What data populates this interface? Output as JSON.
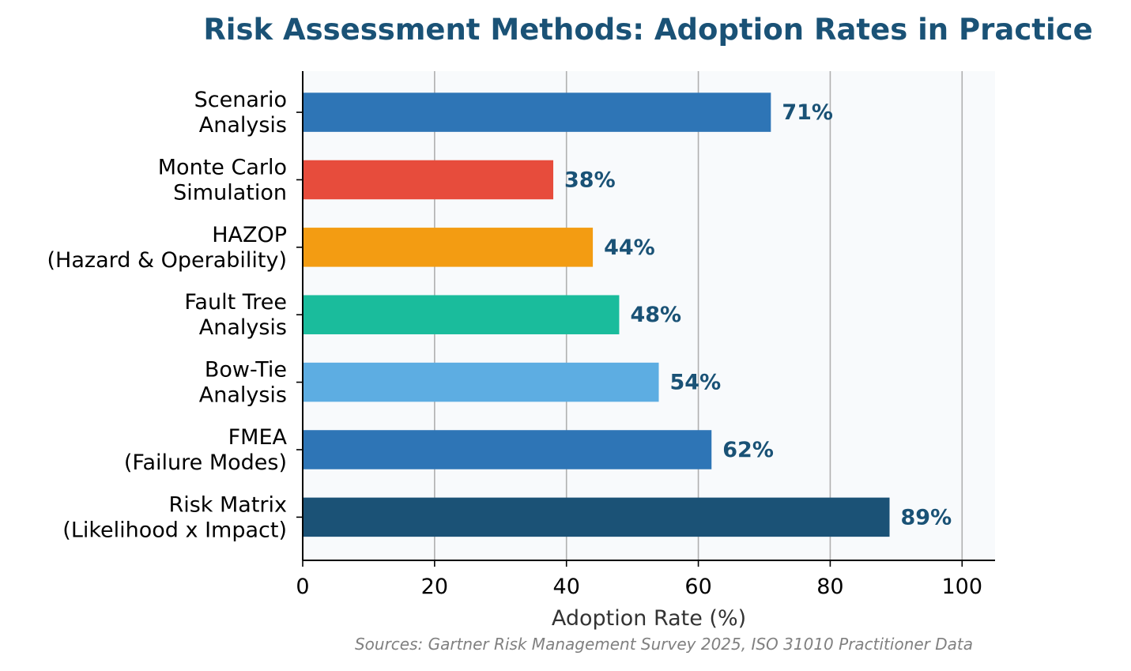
{
  "chart_data": {
    "type": "bar",
    "orientation": "horizontal",
    "title": "Risk Assessment Methods: Adoption Rates in Practice",
    "xlabel": "Adoption Rate (%)",
    "ylabel": "",
    "source_note": "Sources: Gartner Risk Management Survey 2025, ISO 31010 Practitioner Data",
    "xlim": [
      0,
      105
    ],
    "xticks": [
      0,
      20,
      40,
      60,
      80,
      100
    ],
    "grid": "vertical",
    "categories": [
      [
        "Risk Matrix",
        "(Likelihood x Impact)"
      ],
      [
        "FMEA",
        "(Failure Modes)"
      ],
      [
        "Bow-Tie",
        "Analysis"
      ],
      [
        "Fault Tree",
        "Analysis"
      ],
      [
        "HAZOP",
        "(Hazard & Operability)"
      ],
      [
        "Monte Carlo",
        "Simulation"
      ],
      [
        "Scenario",
        "Analysis"
      ]
    ],
    "values": [
      89,
      62,
      54,
      48,
      44,
      38,
      71
    ],
    "value_labels": [
      "89%",
      "62%",
      "54%",
      "48%",
      "44%",
      "38%",
      "71%"
    ],
    "colors": [
      "#1b5276",
      "#2e75b6",
      "#5dade2",
      "#1abc9c",
      "#f39c12",
      "#e74c3c",
      "#2e75b6"
    ],
    "title_color": "#1a5276",
    "label_color": "#1a5276",
    "plot_background": "#f8fafc"
  }
}
